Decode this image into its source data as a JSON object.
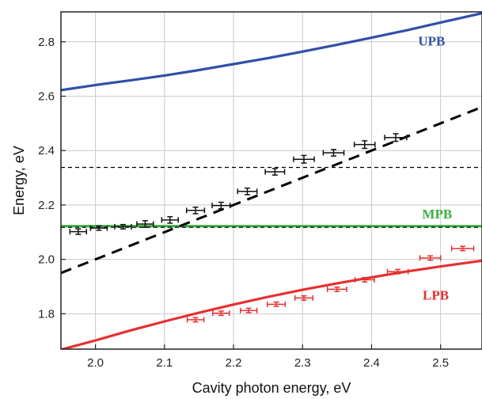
{
  "chart_data": {
    "type": "scatter",
    "xlabel": "Cavity photon energy, eV",
    "ylabel": "Energy, eV",
    "xlim": [
      1.95,
      2.56
    ],
    "ylim": [
      1.67,
      2.91
    ],
    "grid": true,
    "x_ticks": [
      "2.0",
      "2.1",
      "2.2",
      "2.3",
      "2.4",
      "2.5"
    ],
    "y_ticks": [
      "1.8",
      "2.0",
      "2.2",
      "2.4",
      "2.6",
      "2.8"
    ],
    "curves": [
      {
        "name": "UPB",
        "color": "#3050a8",
        "style": "solid",
        "x": [
          1.95,
          2.0,
          2.05,
          2.1,
          2.15,
          2.2,
          2.25,
          2.3,
          2.35,
          2.4,
          2.45,
          2.5,
          2.56
        ],
        "y": [
          2.622,
          2.641,
          2.658,
          2.676,
          2.696,
          2.718,
          2.74,
          2.764,
          2.789,
          2.815,
          2.842,
          2.871,
          2.905
        ]
      },
      {
        "name": "MPB",
        "color": "#3cb043",
        "style": "solid",
        "x": [
          1.95,
          2.56
        ],
        "y": [
          2.122,
          2.122
        ]
      },
      {
        "name": "LPB",
        "color": "#e53030",
        "style": "solid",
        "x": [
          1.95,
          2.0,
          2.05,
          2.1,
          2.15,
          2.2,
          2.25,
          2.3,
          2.35,
          2.4,
          2.45,
          2.5,
          2.56
        ],
        "y": [
          1.668,
          1.702,
          1.738,
          1.772,
          1.804,
          1.834,
          1.862,
          1.888,
          1.912,
          1.934,
          1.955,
          1.974,
          1.995
        ]
      },
      {
        "name": "",
        "color": "#000000",
        "style": "long-dash",
        "x": [
          1.95,
          2.56
        ],
        "y": [
          1.95,
          2.56
        ]
      },
      {
        "name": "",
        "color": "#000000",
        "style": "short-dash",
        "x": [
          1.95,
          2.56
        ],
        "y": [
          2.338,
          2.338
        ]
      },
      {
        "name": "",
        "color": "#000000",
        "style": "short-dash",
        "x": [
          1.95,
          2.56
        ],
        "y": [
          2.118,
          2.118
        ]
      }
    ],
    "series": [
      {
        "name": "",
        "color": "#111111",
        "x": [
          1.975,
          2.005,
          2.04,
          2.072,
          2.108,
          2.145,
          2.182,
          2.22,
          2.26,
          2.302,
          2.345,
          2.39,
          2.435
        ],
        "y": [
          2.102,
          2.115,
          2.12,
          2.13,
          2.145,
          2.18,
          2.198,
          2.25,
          2.322,
          2.368,
          2.392,
          2.422,
          2.448
        ],
        "x_err": [
          0.012,
          0.012,
          0.012,
          0.012,
          0.012,
          0.013,
          0.013,
          0.014,
          0.014,
          0.015,
          0.015,
          0.015,
          0.016
        ],
        "y_err": [
          0.01,
          0.008,
          0.008,
          0.012,
          0.012,
          0.012,
          0.012,
          0.012,
          0.012,
          0.014,
          0.012,
          0.014,
          0.014
        ]
      },
      {
        "name": "",
        "color": "#e53030",
        "x": [
          2.145,
          2.182,
          2.222,
          2.262,
          2.302,
          2.35,
          2.39,
          2.438,
          2.485,
          2.532
        ],
        "y": [
          1.778,
          1.802,
          1.812,
          1.835,
          1.858,
          1.89,
          1.925,
          1.955,
          2.005,
          2.04
        ],
        "x_err": [
          0.012,
          0.012,
          0.012,
          0.013,
          0.013,
          0.014,
          0.014,
          0.015,
          0.015,
          0.016
        ],
        "y_err": [
          0.008,
          0.008,
          0.008,
          0.008,
          0.008,
          0.008,
          0.008,
          0.008,
          0.008,
          0.008
        ]
      }
    ],
    "annotations": [
      {
        "text": "UPB",
        "x": 2.487,
        "y": 2.787,
        "color": "#3050a8"
      },
      {
        "text": "MPB",
        "x": 2.495,
        "y": 2.15,
        "color": "#3cb043"
      },
      {
        "text": "LPB",
        "x": 2.493,
        "y": 1.852,
        "color": "#e53030"
      }
    ]
  }
}
